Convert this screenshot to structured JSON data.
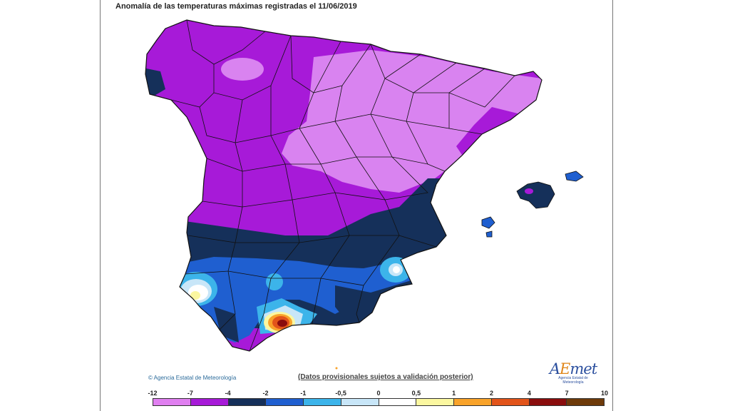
{
  "title": "Anomalía de las temperaturas máximas registradas el 11/06/2019",
  "copyright": "© Agencia Estatal de Meteorología",
  "provisional_note": "(Datos provisionales sujetos a validación posterior)",
  "logo": {
    "main_a": "A",
    "main_e": "E",
    "main_rest": "met",
    "sub": "Agencia Estatal de Meteorología"
  },
  "legend": {
    "labels": [
      "-12",
      "-7",
      "-4",
      "-2",
      "-1",
      "-0,5",
      "0",
      "0,5",
      "1",
      "2",
      "4",
      "7",
      "10"
    ],
    "colors": [
      "#e07ff0",
      "#a71ad8",
      "#15305a",
      "#1f5fd0",
      "#3cb4ea",
      "#c8e6f8",
      "#ffffff",
      "#fbf7a0",
      "#f9a32a",
      "#e2541a",
      "#8a0d0d",
      "#6e3a0a"
    ]
  },
  "colors": {
    "light_violet": "#d983f0",
    "violet": "#a71ad8",
    "navy": "#15305a",
    "blue": "#1f5fd0",
    "cyan": "#3cb4ea",
    "pale_blue": "#c8e6f8",
    "white": "#ffffff",
    "yellow": "#fbf7a0",
    "orange": "#f9a32a",
    "red_orange": "#e2541a",
    "dark_red": "#8a0d0d"
  }
}
